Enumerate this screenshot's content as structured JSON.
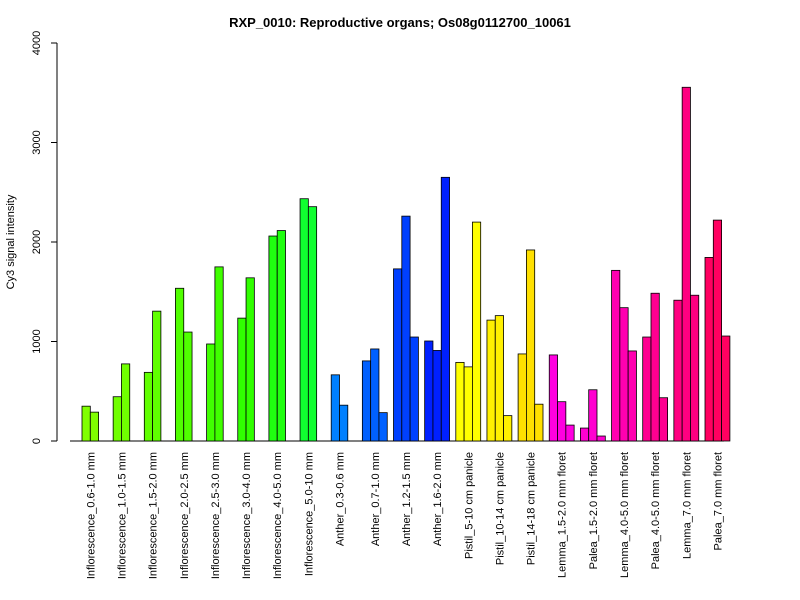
{
  "chart_data": {
    "type": "bar",
    "title": "RXP_0010: Reproductive organs; Os08g0112700_10061",
    "xlabel": "",
    "ylabel": "Cy3 signal intensity",
    "ylim": [
      0,
      4000
    ],
    "yticks": [
      "0",
      "1000",
      "2000",
      "3000",
      "4000"
    ],
    "grid": false,
    "legend": "none",
    "groups": [
      {
        "label": "Inflorescence_0.6-1.0 mm",
        "color": "#80ff00",
        "values": [
          350,
          290
        ]
      },
      {
        "label": "Inflorescence_1.0-1.5 mm",
        "color": "#70ff00",
        "values": [
          445,
          775
        ]
      },
      {
        "label": "Inflorescence_1.5-2.0 mm",
        "color": "#60ff00",
        "values": [
          690,
          1305
        ]
      },
      {
        "label": "Inflorescence_2.0-2.5 mm",
        "color": "#50ff00",
        "values": [
          1535,
          1095
        ]
      },
      {
        "label": "Inflorescence_2.5-3.0 mm",
        "color": "#40ff00",
        "values": [
          975,
          1750
        ]
      },
      {
        "label": "Inflorescence_3.0-4.0 mm",
        "color": "#30ff00",
        "values": [
          1235,
          1640
        ]
      },
      {
        "label": "Inflorescence_4.0-5.0 mm",
        "color": "#20ff10",
        "values": [
          2060,
          2115
        ]
      },
      {
        "label": "Inflorescence_5.0-10 mm",
        "color": "#10ff30",
        "values": [
          2435,
          2355
        ]
      },
      {
        "label": "Anther_0.3-0.6 mm",
        "color": "#0080ff",
        "values": [
          665,
          360
        ]
      },
      {
        "label": "Anther_0.7-1.0 mm",
        "color": "#0060ff",
        "values": [
          805,
          925,
          285
        ]
      },
      {
        "label": "Anther_1.2-1.5 mm",
        "color": "#0040ff",
        "values": [
          1730,
          2260,
          1045
        ]
      },
      {
        "label": "Anther_1.6-2.0 mm",
        "color": "#0020ff",
        "values": [
          1005,
          910,
          2650
        ]
      },
      {
        "label": "Pistil_5-10 cm panicle",
        "color": "#ffff00",
        "values": [
          790,
          745,
          2200
        ]
      },
      {
        "label": "Pistil_10-14 cm panicle",
        "color": "#fff000",
        "values": [
          1215,
          1260,
          255
        ]
      },
      {
        "label": "Pistil_14-18 cm panicle",
        "color": "#ffe000",
        "values": [
          875,
          1920,
          370
        ]
      },
      {
        "label": "Lemma_1.5-2.0 mm floret",
        "color": "#ff00e0",
        "values": [
          865,
          395,
          160
        ]
      },
      {
        "label": "Palea_1.5-2.0 mm floret",
        "color": "#ff00d0",
        "values": [
          130,
          515,
          50
        ]
      },
      {
        "label": "Lemma_4.0-5.0 mm floret",
        "color": "#ff00b0",
        "values": [
          1715,
          1340,
          905
        ]
      },
      {
        "label": "Palea_4.0-5.0 mm floret",
        "color": "#ff0090",
        "values": [
          1045,
          1485,
          435
        ]
      },
      {
        "label": "Lemma_7.0 mm floret",
        "color": "#ff0080",
        "values": [
          1415,
          3555,
          1465
        ]
      },
      {
        "label": "Palea_7.0 mm floret",
        "color": "#ff0060",
        "values": [
          1845,
          2220,
          1055
        ]
      }
    ]
  }
}
